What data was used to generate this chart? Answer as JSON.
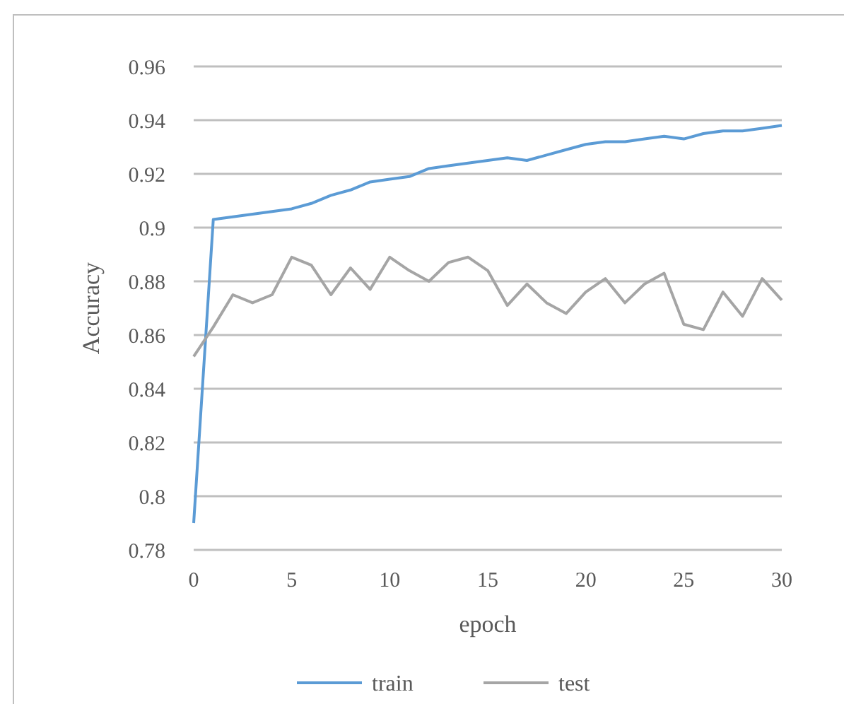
{
  "chart_data": {
    "type": "line",
    "xlabel": "epoch",
    "ylabel": "Accuracy",
    "x": [
      0,
      1,
      2,
      3,
      4,
      5,
      6,
      7,
      8,
      9,
      10,
      11,
      12,
      13,
      14,
      15,
      16,
      17,
      18,
      19,
      20,
      21,
      22,
      23,
      24,
      25,
      26,
      27,
      28,
      29,
      30
    ],
    "series": [
      {
        "name": "train",
        "color": "#5b9bd5",
        "values": [
          0.79,
          0.903,
          0.904,
          0.905,
          0.906,
          0.907,
          0.909,
          0.912,
          0.914,
          0.917,
          0.918,
          0.919,
          0.922,
          0.923,
          0.924,
          0.925,
          0.926,
          0.925,
          0.927,
          0.929,
          0.931,
          0.932,
          0.932,
          0.933,
          0.934,
          0.933,
          0.935,
          0.936,
          0.936,
          0.937,
          0.938
        ]
      },
      {
        "name": "test",
        "color": "#a5a5a5",
        "values": [
          0.852,
          0.863,
          0.875,
          0.872,
          0.875,
          0.889,
          0.886,
          0.875,
          0.885,
          0.877,
          0.889,
          0.884,
          0.88,
          0.887,
          0.889,
          0.884,
          0.871,
          0.879,
          0.872,
          0.868,
          0.876,
          0.881,
          0.872,
          0.879,
          0.883,
          0.864,
          0.862,
          0.876,
          0.867,
          0.881,
          0.873
        ]
      }
    ],
    "xlim": [
      0,
      30
    ],
    "xticks": [
      0,
      5,
      10,
      15,
      20,
      25,
      30
    ],
    "ylim": [
      0.78,
      0.96
    ],
    "yticks": [
      0.78,
      0.8,
      0.82,
      0.84,
      0.86,
      0.88,
      {
        "value": 0.9,
        "label": "0.9"
      },
      0.92,
      0.94,
      0.96
    ],
    "grid": "y",
    "legend": "bottom",
    "marker": "none",
    "line_style": "solid"
  }
}
